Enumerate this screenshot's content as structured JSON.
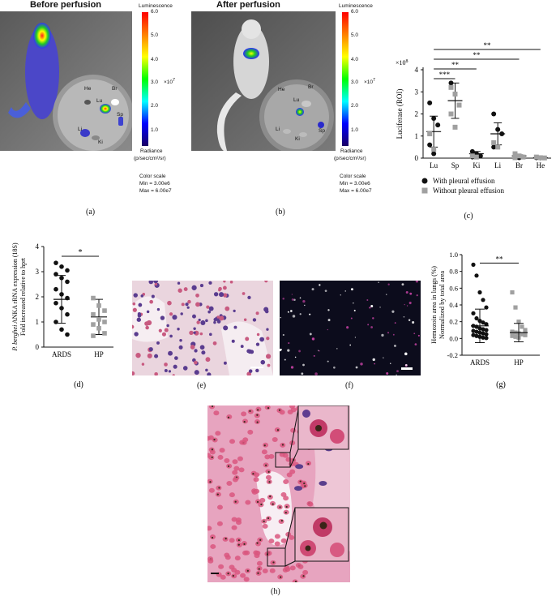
{
  "panel_a": {
    "title": "Before perfusion",
    "organs": [
      "He",
      "Br",
      "Lu",
      "Sp",
      "Li",
      "Ki"
    ],
    "colorbar": {
      "title": "Luminescence",
      "ticks": [
        "6.0",
        "5.0",
        "4.0",
        "3.0",
        "2.0",
        "1.0"
      ],
      "exponent": "×10",
      "exponent_power": "7",
      "unit_line1": "Radiance",
      "unit_line2": "(p/sec/cm²/sr)",
      "scale_title": "Color scale",
      "min": "Min = 3.00e6",
      "max": "Max = 6.00e7"
    },
    "label": "(a)"
  },
  "panel_b": {
    "title": "After perfusion",
    "organs": [
      "He",
      "Br",
      "Lu",
      "Li",
      "Ki",
      "Sp"
    ],
    "colorbar": {
      "title": "Luminescence",
      "ticks": [
        "6.0",
        "5.0",
        "4.0",
        "3.0",
        "2.0",
        "1.0"
      ],
      "exponent": "×10",
      "exponent_power": "7",
      "unit_line1": "Radiance",
      "unit_line2": "(p/sec/cm²/sr)",
      "scale_title": "Color scale",
      "min": "Min = 3.00e6",
      "max": "Max = 6.00e7"
    },
    "label": "(b)"
  },
  "panel_e": {
    "label": "(e)"
  },
  "panel_f": {
    "label": "(f)"
  },
  "panel_h": {
    "label": "(h)"
  },
  "chart_data": [
    {
      "panel": "(c)",
      "type": "scatter",
      "ylabel": "Luciferase (ROI)",
      "y_exponent": "×10",
      "y_exponent_power": "8",
      "categories": [
        "Lu",
        "Sp",
        "Ki",
        "Li",
        "Br",
        "He"
      ],
      "ylim": [
        0,
        4
      ],
      "yticks": [
        0,
        1,
        2,
        3,
        4
      ],
      "series": [
        {
          "name": "With pleural effusion",
          "color": "#111111",
          "marker": "circle",
          "points": {
            "Lu": [
              2.5,
              1.8,
              1.5,
              0.6,
              0.2
            ],
            "Sp": [
              3.4
            ],
            "Ki": [
              0.3,
              0.2,
              0.1,
              0.05
            ],
            "Li": [
              2.0,
              1.3,
              1.1,
              0.5
            ],
            "Br": [
              0.05,
              0.02
            ],
            "He": [
              0.02,
              0.01
            ]
          }
        },
        {
          "name": "Without pleural effusion",
          "color": "#a0a0a0",
          "marker": "square",
          "points": {
            "Lu": [
              1.1,
              0.4
            ],
            "Sp": [
              3.2,
              2.9,
              2.4,
              2.0,
              1.4
            ],
            "Ki": [
              0.1,
              0.05
            ],
            "Li": [
              0.7,
              0.5
            ],
            "Br": [
              0.2,
              0.1,
              0.05,
              0.02
            ],
            "He": [
              0.05,
              0.02,
              0.01
            ]
          }
        }
      ],
      "means": {
        "Lu": 1.2,
        "Sp": 2.6,
        "Ki": 0.2,
        "Li": 1.1,
        "Br": 0.1,
        "He": 0.02
      },
      "sd": {
        "Lu": 0.7,
        "Sp": 0.8,
        "Ki": 0.1,
        "Li": 0.5,
        "Br": 0.05,
        "He": 0.02
      },
      "significance": [
        {
          "from": "Lu",
          "to": "Sp",
          "label": "***"
        },
        {
          "from": "Lu",
          "to": "Ki",
          "label": "**"
        },
        {
          "from": "Lu",
          "to": "Br",
          "label": "**"
        },
        {
          "from": "Lu",
          "to": "He",
          "label": "**"
        }
      ],
      "legend": [
        {
          "label": "With pleural effusion",
          "marker": "circle",
          "color": "#111111"
        },
        {
          "label": "Without pleural effusion",
          "marker": "square",
          "color": "#a0a0a0"
        }
      ],
      "legend_position": "bottom"
    },
    {
      "panel": "(d)",
      "type": "scatter",
      "ylabel_italic": "P. berghei",
      "ylabel_rest": " ANKA rRNA expression (18S)",
      "ylabel2": "Fold increased relative to hprt",
      "categories": [
        "ARDS",
        "HP"
      ],
      "ylim": [
        0,
        4
      ],
      "yticks": [
        0,
        1,
        2,
        3,
        4
      ],
      "series": [
        {
          "name": "ARDS",
          "color": "#111111",
          "marker": "circle",
          "values": [
            3.35,
            3.2,
            3.05,
            2.9,
            2.75,
            2.6,
            2.3,
            2.1,
            1.95,
            1.75,
            1.55,
            1.3,
            1.0,
            0.7,
            0.5
          ]
        },
        {
          "name": "HP",
          "color": "#a0a0a0",
          "marker": "square",
          "values": [
            1.95,
            1.65,
            1.45,
            1.3,
            1.1,
            1.0,
            0.9,
            0.75,
            0.55,
            0.45
          ]
        }
      ],
      "means": [
        1.9,
        1.2
      ],
      "sd": [
        0.95,
        0.7
      ],
      "significance": [
        {
          "from": "ARDS",
          "to": "HP",
          "label": "*"
        }
      ]
    },
    {
      "panel": "(g)",
      "type": "scatter",
      "ylabel": "Hemozoin area in lungs (%)",
      "ylabel2": "Normalized by total area",
      "categories": [
        "ARDS",
        "HP"
      ],
      "ylim": [
        -0.2,
        1.0
      ],
      "yticks": [
        -0.2,
        0.0,
        0.2,
        0.4,
        0.6,
        0.8,
        1.0
      ],
      "series": [
        {
          "name": "ARDS",
          "color": "#111111",
          "marker": "circle",
          "values": [
            0.88,
            0.75,
            0.55,
            0.46,
            0.37,
            0.3,
            0.24,
            0.21,
            0.19,
            0.17,
            0.15,
            0.14,
            0.12,
            0.11,
            0.1,
            0.09,
            0.08,
            0.07,
            0.06,
            0.05,
            0.04,
            0.03,
            0.02,
            0.01,
            0.005
          ]
        },
        {
          "name": "HP",
          "color": "#a0a0a0",
          "marker": "square",
          "values": [
            0.55,
            0.37,
            0.2,
            0.14,
            0.1,
            0.08,
            0.07,
            0.06,
            0.05,
            0.04,
            0.03,
            0.02,
            0.01
          ]
        }
      ],
      "means": [
        0.15,
        0.07
      ],
      "sd": [
        0.2,
        0.11
      ],
      "significance": [
        {
          "from": "ARDS",
          "to": "HP",
          "label": "**"
        }
      ]
    }
  ]
}
